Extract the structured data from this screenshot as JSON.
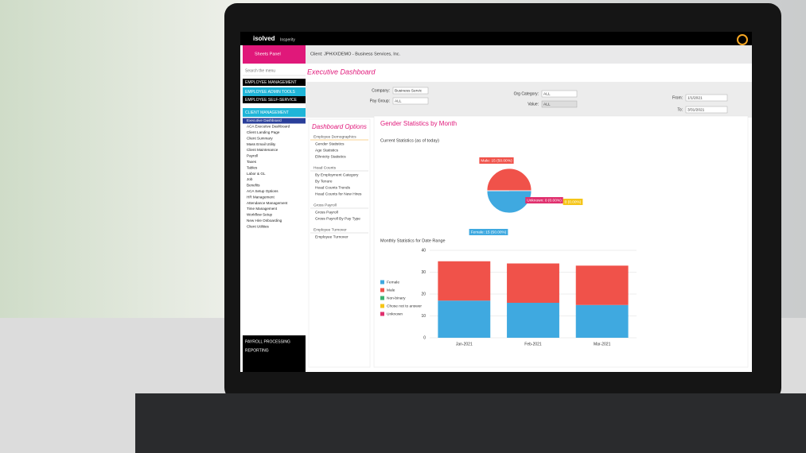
{
  "header": {
    "brand": "isolved",
    "partner": "Insperity",
    "sheets_panel": "Sheets Panel",
    "client": "Client: JPHXXDEMO - Business Services, Inc."
  },
  "sidebar": {
    "search": "Search the menu",
    "sections": [
      "EMPLOYEE MANAGEMENT",
      "EMPLOYEE ADMIN TOOLS",
      "EMPLOYEE SELF-SERVICE",
      "CLIENT MANAGEMENT"
    ],
    "items": [
      "Executive Dashboard",
      "ACA Executive Dashboard",
      "Client Landing Page",
      "Client Summary",
      "Mass Email Utility",
      "Client Maintenance",
      "Payroll",
      "Taxes",
      "Tables",
      "Labor & GL",
      "Job",
      "Benefits",
      "ACA Setup Options",
      "HR Management",
      "Attendance Management",
      "Time Management",
      "Workflow Setup",
      "New Hire Onboarding",
      "Client Utilities"
    ],
    "bottom": [
      "PAYROLL PROCESSING",
      "REPORTING"
    ]
  },
  "page_title": "Executive Dashboard",
  "filters": [
    {
      "label": "Company:",
      "value": "Business Servic"
    },
    {
      "label": "Pay Group:",
      "value": "ALL"
    },
    {
      "label": "Org Category:",
      "value": "ALL"
    },
    {
      "label": "Value:",
      "value": "ALL"
    },
    {
      "label": "From:",
      "value": "1/1/2021"
    },
    {
      "label": "To:",
      "value": "3/31/2021"
    }
  ],
  "dashboard_options": {
    "title": "Dashboard Options",
    "groups": [
      {
        "heading": "Employee Demographics",
        "items": [
          "Gender Statistics",
          "Age Statistics",
          "Ethnicity Statistics"
        ]
      },
      {
        "heading": "Head Counts",
        "items": [
          "By Employment Category",
          "By Tenure",
          "Head Counts Trends",
          "Head Counts for New Hires"
        ]
      },
      {
        "heading": "Gross Payroll",
        "items": [
          "Gross Payroll",
          "Gross Payroll By Pay Type"
        ]
      },
      {
        "heading": "Employee Turnover",
        "items": [
          "Employee Turnover"
        ]
      }
    ]
  },
  "panel_title": "Gender Statistics by Month",
  "chart_data": [
    {
      "type": "pie",
      "title": "Current Statistics (as of today)",
      "values": [
        15,
        15,
        0,
        0
      ],
      "value_labels": [
        "Male: 15 (50.00%)",
        "Female: 15 (50.00%)",
        "Unknown: 0 (0.00%)",
        "0 (0.00%)"
      ],
      "colors": [
        "#f0524a",
        "#3fa9e0",
        "#e0306e",
        "#f5c518"
      ]
    },
    {
      "type": "bar",
      "stacked": true,
      "title": "Monthly Statistics for Date Range",
      "categories": [
        "Jan-2021",
        "Feb-2021",
        "Mar-2021"
      ],
      "series": [
        {
          "name": "Female",
          "color": "#3fa9e0",
          "values": [
            17,
            16,
            15
          ]
        },
        {
          "name": "Male",
          "color": "#f0524a",
          "values": [
            18,
            18,
            18
          ]
        },
        {
          "name": "Non-binary",
          "color": "#3cb371",
          "values": [
            0,
            0,
            0
          ]
        },
        {
          "name": "Chose not to answer",
          "color": "#f5c518",
          "values": [
            0,
            0,
            0
          ]
        },
        {
          "name": "Unknown",
          "color": "#e0306e",
          "values": [
            0,
            0,
            0
          ]
        }
      ],
      "ylim": [
        0,
        40
      ],
      "yticks": [
        0,
        10,
        20,
        30,
        40
      ],
      "grid": true,
      "legend": "left"
    }
  ]
}
